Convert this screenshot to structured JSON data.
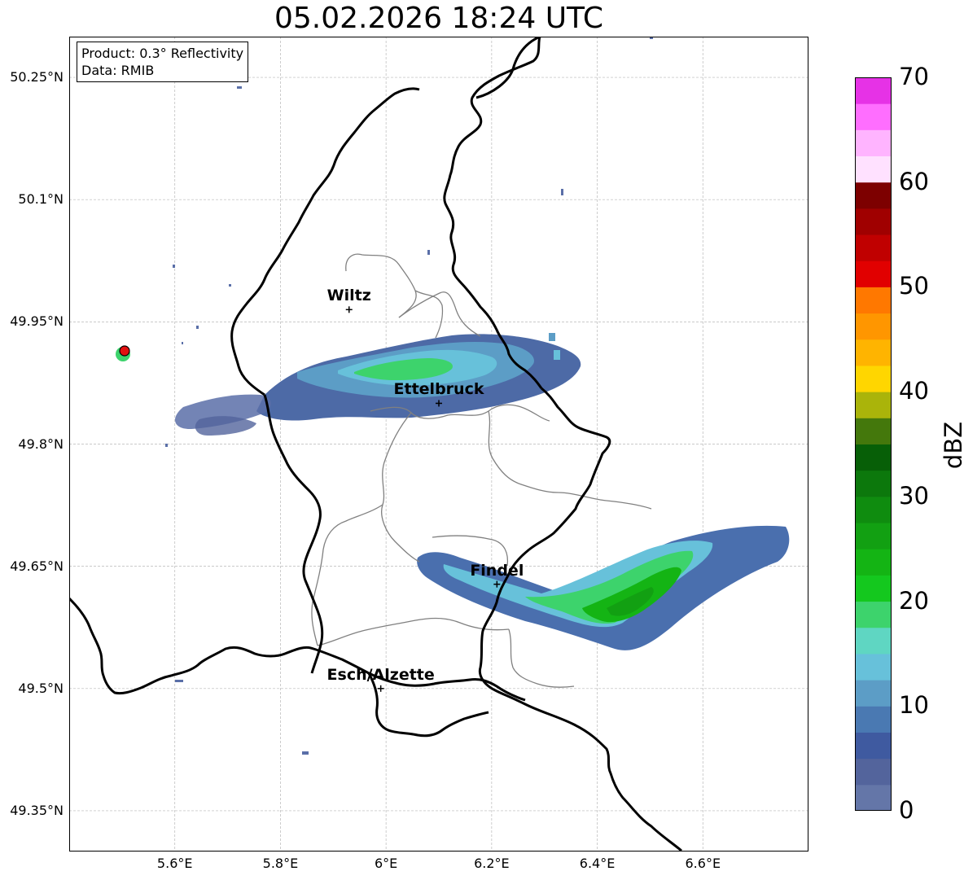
{
  "title": "05.02.2026 18:24 UTC",
  "info": {
    "product": "Product: 0.3° Reflectivity",
    "data_source": "Data: RMIB"
  },
  "y_ticks": [
    "50.25°N",
    "50.1°N",
    "49.95°N",
    "49.8°N",
    "49.65°N",
    "49.5°N",
    "49.35°N"
  ],
  "x_ticks": [
    "5.6°E",
    "5.8°E",
    "6°E",
    "6.2°E",
    "6.4°E",
    "6.6°E"
  ],
  "cities": [
    {
      "name": "Wiltz",
      "lon": 5.93,
      "lat": 49.965
    },
    {
      "name": "Ettelbruck",
      "lon": 6.1,
      "lat": 49.85
    },
    {
      "name": "Findel",
      "lon": 6.21,
      "lat": 49.628
    },
    {
      "name": "Esch/Alzette",
      "lon": 5.99,
      "lat": 49.5
    }
  ],
  "radar_site": {
    "lon": 5.505,
    "lat": 49.915
  },
  "colorbar": {
    "label": "dBZ",
    "ticks": [
      "0",
      "10",
      "20",
      "30",
      "40",
      "50",
      "60",
      "70"
    ],
    "min": 0,
    "max": 70,
    "colors": [
      "#6476a8",
      "#53649c",
      "#3f5aa0",
      "#4a79b2",
      "#5c9dc6",
      "#67c1da",
      "#5fd6c2",
      "#3dd36c",
      "#14c81e",
      "#14b414",
      "#12a012",
      "#0f8c0f",
      "#0c780c",
      "#075f07",
      "#44780c",
      "#aab40a",
      "#ffd600",
      "#ffb400",
      "#ff9600",
      "#ff7800",
      "#e10000",
      "#c00000",
      "#a00000",
      "#7d0000",
      "#ffe1ff",
      "#ffb4ff",
      "#ff6eff",
      "#e632e6"
    ]
  },
  "map_extent": {
    "lon_min": 5.4,
    "lon_max": 6.8,
    "lat_min": 49.3,
    "lat_max": 50.3
  }
}
